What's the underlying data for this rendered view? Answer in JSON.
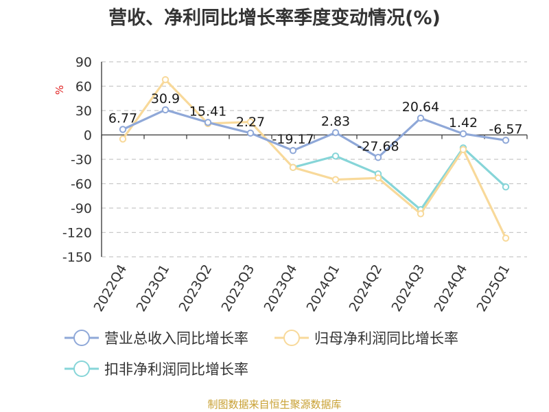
{
  "title": "营收、净利同比增长率季度变动情况(%)",
  "source": "制图数据来自恒生聚源数据库",
  "chart_data": {
    "type": "line",
    "ylabel": "%",
    "ylim": [
      -150,
      90
    ],
    "yticks": [
      90,
      60,
      30,
      0,
      -30,
      -60,
      -90,
      -120,
      -150
    ],
    "grid": true,
    "legend_position": "bottom",
    "categories": [
      "2022Q4",
      "2023Q1",
      "2023Q2",
      "2023Q3",
      "2023Q4",
      "2024Q1",
      "2024Q2",
      "2024Q3",
      "2024Q4",
      "2025Q1"
    ],
    "series": [
      {
        "name": "营业总收入同比增长率",
        "color": "#8fa8d8",
        "values": [
          6.77,
          30.9,
          15.41,
          2.27,
          -19.17,
          2.83,
          -27.68,
          20.64,
          1.42,
          -6.57
        ],
        "labels": [
          "6.77",
          "30.9",
          "15.41",
          "2.27",
          "-19.17",
          "2.83",
          "-27.68",
          "20.64",
          "1.42",
          "-6.57"
        ]
      },
      {
        "name": "归母净利润同比增长率",
        "color": "#f8d99a",
        "values": [
          -5,
          68,
          14,
          16,
          -40,
          -55,
          -53,
          -97,
          -18,
          -127
        ]
      },
      {
        "name": "扣非净利润同比增长率",
        "color": "#86d5d8",
        "values": [
          null,
          null,
          null,
          null,
          -40,
          -26,
          -48,
          -92,
          -16,
          -64
        ]
      }
    ]
  }
}
